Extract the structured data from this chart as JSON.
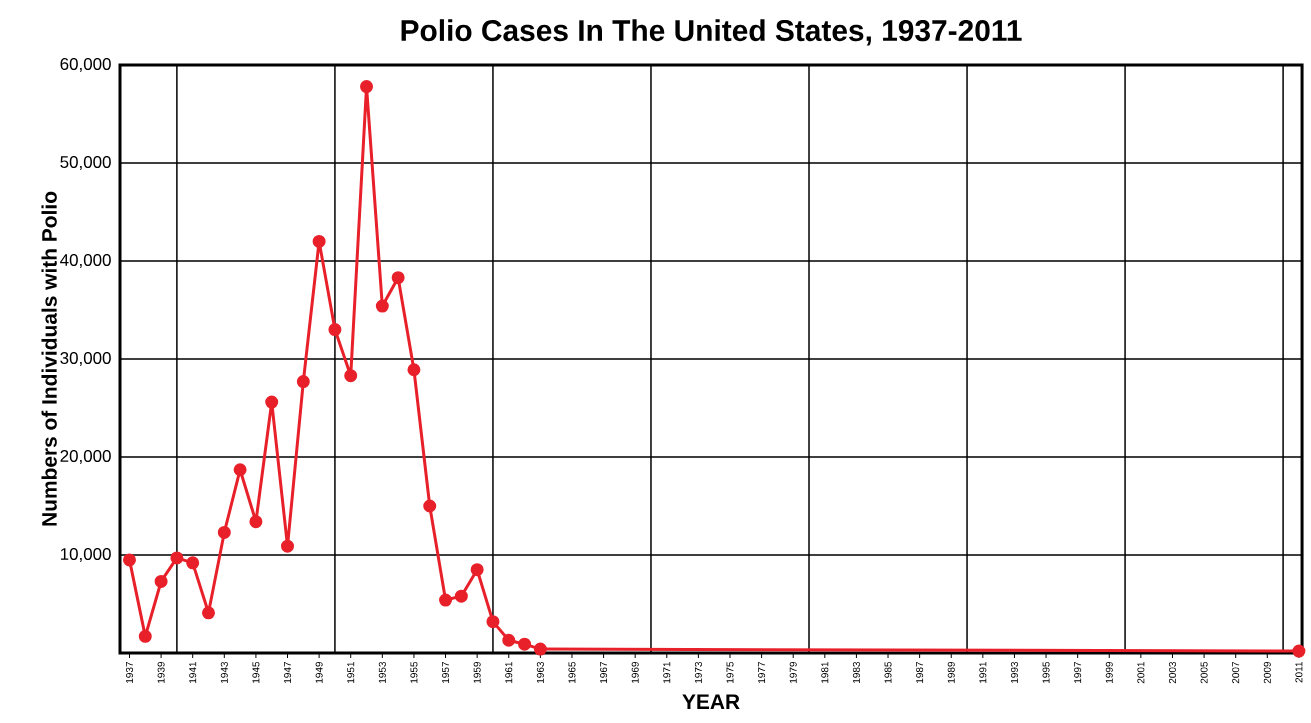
{
  "chart_data": {
    "type": "line",
    "title": "Polio Cases In The United States, 1937-2011",
    "xlabel": "YEAR",
    "ylabel": "Numbers of Individuals with Polio",
    "x": [
      1937,
      1938,
      1939,
      1940,
      1941,
      1942,
      1943,
      1944,
      1945,
      1946,
      1947,
      1948,
      1949,
      1950,
      1951,
      1952,
      1953,
      1954,
      1955,
      1956,
      1957,
      1958,
      1959,
      1960,
      1961,
      1962,
      1963,
      2011
    ],
    "series": [
      {
        "color": "#e8202a",
        "values": [
          9500,
          1700,
          7300,
          9700,
          9200,
          4100,
          12300,
          18700,
          13400,
          25600,
          10900,
          27700,
          42000,
          33000,
          28300,
          57800,
          35400,
          38300,
          28900,
          15000,
          5400,
          5800,
          8500,
          3200,
          1300,
          900,
          400,
          200
        ]
      }
    ],
    "xlim": [
      1936.4,
      2011.2
    ],
    "ylim": [
      0,
      60000
    ],
    "xticks": [
      1937,
      1939,
      1941,
      1943,
      1945,
      1947,
      1949,
      1951,
      1953,
      1955,
      1957,
      1959,
      1961,
      1963,
      1965,
      1967,
      1969,
      1971,
      1973,
      1975,
      1977,
      1979,
      1981,
      1983,
      1985,
      1987,
      1989,
      1991,
      1993,
      1995,
      1997,
      1999,
      2001,
      2003,
      2005,
      2007,
      2009,
      2011
    ],
    "yticks": [
      {
        "value": 10000,
        "label": "10,000"
      },
      {
        "value": 20000,
        "label": "20,000"
      },
      {
        "value": 30000,
        "label": "30,000"
      },
      {
        "value": 40000,
        "label": "40,000"
      },
      {
        "value": 50000,
        "label": "50,000"
      },
      {
        "value": 60000,
        "label": "60,000"
      }
    ],
    "ref_lines": [
      {
        "axis": "x",
        "value": 1940,
        "color": "#000000"
      },
      {
        "axis": "x",
        "value": 1950,
        "color": "#000000"
      },
      {
        "axis": "x",
        "value": 1960,
        "color": "#000000"
      },
      {
        "axis": "x",
        "value": 1970,
        "color": "#000000"
      },
      {
        "axis": "x",
        "value": 1980,
        "color": "#000000"
      },
      {
        "axis": "x",
        "value": 1990,
        "color": "#000000"
      },
      {
        "axis": "x",
        "value": 2000,
        "color": "#000000"
      },
      {
        "axis": "x",
        "value": 2010,
        "color": "#000000"
      }
    ],
    "grid": "y",
    "marker": "circle",
    "line_style": "solid"
  }
}
